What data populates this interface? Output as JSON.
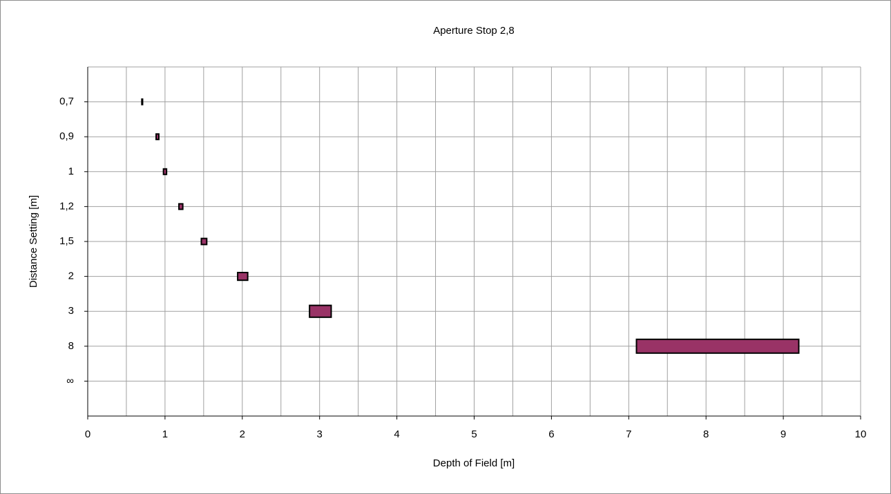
{
  "chart_data": {
    "type": "range_bar",
    "title": "Aperture Stop 2,8",
    "x_label": "Depth of Field [m]",
    "y_label": "Distance Setting [m]",
    "categories": [
      "0,7",
      "0,9",
      "1",
      "1,2",
      "1,5",
      "2",
      "3",
      "8",
      "∞"
    ],
    "start": [
      0.7,
      0.885,
      0.98,
      1.18,
      1.47,
      1.94,
      2.87,
      7.1,
      null
    ],
    "end": [
      0.71,
      0.92,
      1.02,
      1.23,
      1.54,
      2.07,
      3.15,
      9.2,
      null
    ],
    "color": "#993366",
    "edge_color": "#000000",
    "xlim": [
      0,
      10
    ],
    "xticks": [
      0,
      1,
      2,
      3,
      4,
      5,
      6,
      7,
      8,
      9,
      10
    ],
    "grid": true,
    "minor_grid": true
  }
}
